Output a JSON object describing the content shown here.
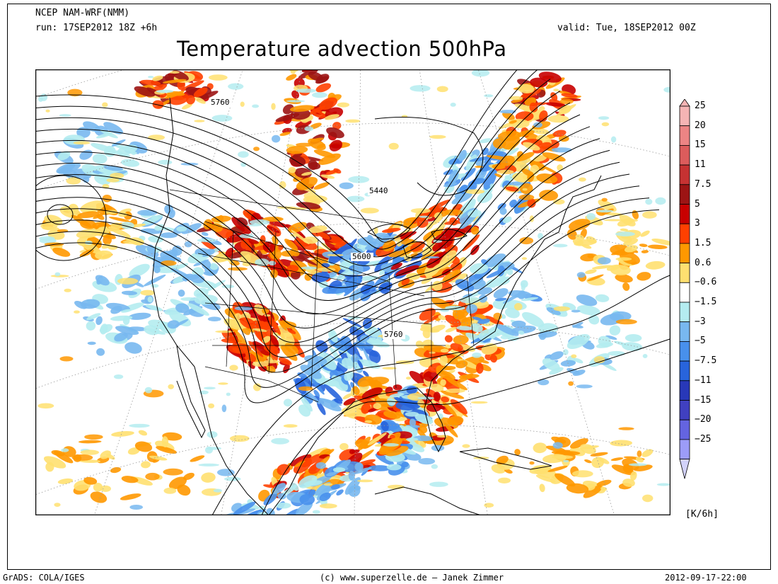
{
  "header": {
    "model": "NCEP NAM-WRF(NMM)",
    "run": "run: 17SEP2012 18Z +6h",
    "valid": "valid: Tue, 18SEP2012 00Z",
    "title": "Temperature advection 500hPa"
  },
  "map": {
    "contour_labels": [
      {
        "text": "5760"
      },
      {
        "text": "5440"
      },
      {
        "text": "5600"
      },
      {
        "text": "5760"
      }
    ]
  },
  "colorbar": {
    "units": "[K/6h]",
    "levels": [
      "25",
      "20",
      "15",
      "11",
      "7.5",
      "5",
      "3",
      "1.5",
      "0.6",
      "−0.6",
      "−1.5",
      "−3",
      "−5",
      "−7.5",
      "−11",
      "−15",
      "−20",
      "−25"
    ],
    "colors": [
      "#f5b4b4",
      "#ec8484",
      "#dc5c5c",
      "#c63232",
      "#9c1414",
      "#c80000",
      "#ff4000",
      "#ff9800",
      "#ffe070",
      "#ffffff",
      "#b4ecf0",
      "#78b8f0",
      "#4890ec",
      "#2864dc",
      "#2838b8",
      "#4040c0",
      "#6464e0",
      "#9c9cf8",
      "#d2d2fa"
    ]
  },
  "footer": {
    "left": "GrADS: COLA/IGES",
    "center": "(c) www.superzelle.de – Janek Zimmer",
    "right": "2012-09-17-22:00"
  }
}
